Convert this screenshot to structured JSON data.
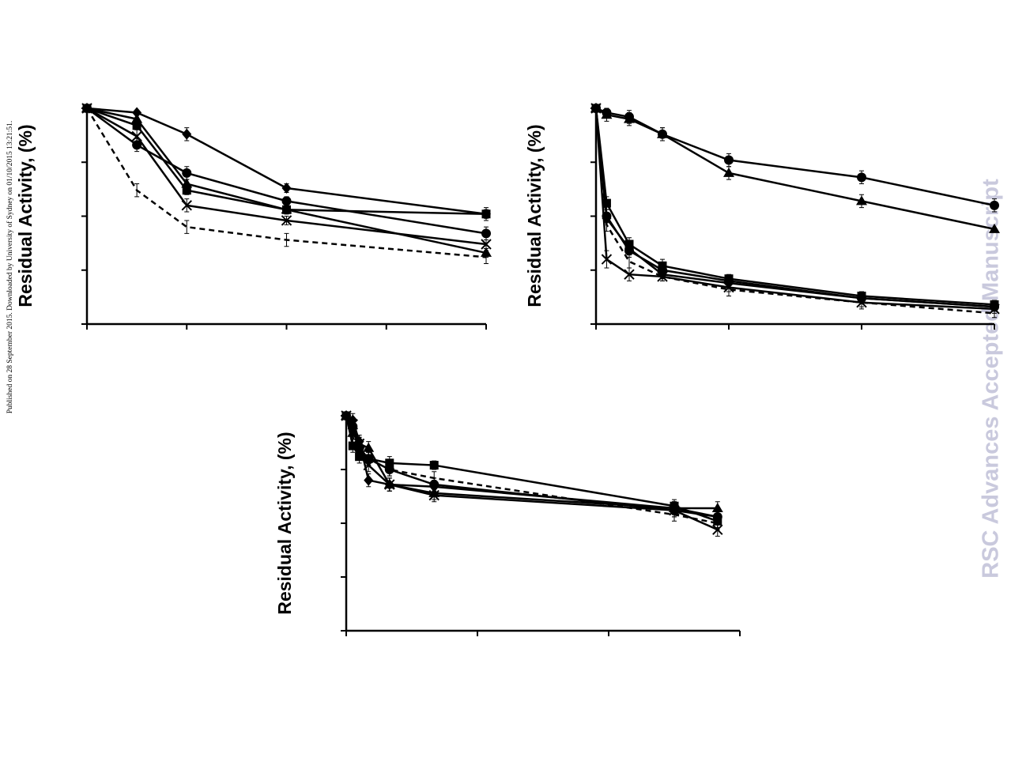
{
  "sidebar_note": "Published on 28 September 2015. Downloaded by University of Sydney on 01/10/2015 13:21:51.",
  "watermark": "RSC Advances Accepted Manuscript",
  "chart_data": [
    {
      "type": "line",
      "ylabel": "Residual Activity, (%)",
      "xlim": [
        0,
        4
      ],
      "ylim": [
        0,
        100
      ],
      "series": [
        {
          "marker": "diamond",
          "dashed": false,
          "x": [
            0,
            0.5,
            1,
            2,
            4
          ],
          "y": [
            100,
            98,
            88,
            63,
            51
          ],
          "err": [
            0,
            0,
            3,
            2,
            2
          ]
        },
        {
          "marker": "circle",
          "dashed": false,
          "x": [
            0,
            0.5,
            1,
            2,
            4
          ],
          "y": [
            100,
            83,
            70,
            57,
            42
          ],
          "err": [
            0,
            3,
            3,
            2,
            3
          ]
        },
        {
          "marker": "triangle",
          "dashed": false,
          "x": [
            0,
            0.5,
            1,
            2,
            4
          ],
          "y": [
            100,
            95,
            65,
            53,
            33
          ],
          "err": [
            0,
            0,
            2,
            2,
            2
          ]
        },
        {
          "marker": "square",
          "dashed": false,
          "x": [
            0,
            0.5,
            1,
            2,
            4
          ],
          "y": [
            100,
            92,
            62,
            53,
            51
          ],
          "err": [
            0,
            0,
            2,
            2,
            3
          ]
        },
        {
          "marker": "cross",
          "dashed": false,
          "x": [
            0,
            0.5,
            1,
            2,
            4
          ],
          "y": [
            100,
            87,
            55,
            48,
            37
          ],
          "err": [
            0,
            3,
            3,
            2,
            2
          ]
        },
        {
          "marker": "none",
          "dashed": true,
          "x": [
            0,
            0.5,
            1,
            2,
            4
          ],
          "y": [
            100,
            62,
            45,
            39,
            31
          ],
          "err": [
            0,
            3,
            3,
            3,
            3
          ]
        }
      ]
    },
    {
      "type": "line",
      "ylabel": "Residual Activity, (%)",
      "xlim": [
        0,
        30
      ],
      "ylim": [
        0,
        100
      ],
      "series": [
        {
          "marker": "circle",
          "dashed": false,
          "x": [
            0,
            0.8,
            2.5,
            5,
            10,
            20,
            30
          ],
          "y": [
            100,
            98,
            96,
            88,
            76,
            68,
            55
          ],
          "err": [
            0,
            0,
            3,
            3,
            3,
            3,
            3
          ]
        },
        {
          "marker": "triangle",
          "dashed": false,
          "x": [
            0,
            0.8,
            2.5,
            5,
            10,
            20,
            30
          ],
          "y": [
            100,
            97,
            95,
            88,
            70,
            57,
            44
          ],
          "err": [
            0,
            3,
            3,
            3,
            3,
            3,
            0
          ]
        },
        {
          "marker": "square",
          "dashed": false,
          "x": [
            0,
            0.8,
            2.5,
            5,
            10,
            20,
            30
          ],
          "y": [
            100,
            56,
            37,
            27,
            21,
            13,
            9
          ],
          "err": [
            0,
            3,
            3,
            3,
            2,
            2,
            2
          ]
        },
        {
          "marker": "circle",
          "dashed": false,
          "x": [
            0,
            0.8,
            2.5,
            5,
            10,
            20,
            30
          ],
          "y": [
            100,
            50,
            34,
            25,
            20,
            12,
            8
          ],
          "err": [
            0,
            3,
            3,
            2,
            2,
            2,
            2
          ]
        },
        {
          "marker": "diamond",
          "dashed": false,
          "x": [
            0,
            0.8,
            2.5,
            5,
            10,
            20,
            30
          ],
          "y": [
            100,
            49,
            35,
            23,
            19,
            12,
            8
          ],
          "err": [
            0,
            0,
            2,
            2,
            2,
            2,
            2
          ]
        },
        {
          "marker": "cross",
          "dashed": false,
          "x": [
            0,
            0.8,
            2.5,
            5,
            10,
            20,
            30
          ],
          "y": [
            100,
            30,
            23,
            22,
            17,
            10,
            7
          ],
          "err": [
            0,
            4,
            3,
            2,
            2,
            2,
            2
          ]
        },
        {
          "marker": "none",
          "dashed": true,
          "x": [
            0,
            0.8,
            2.5,
            5,
            10,
            20,
            30
          ],
          "y": [
            100,
            46,
            29,
            22,
            16,
            10,
            5
          ],
          "err": [
            0,
            3,
            3,
            2,
            3,
            3,
            2
          ]
        }
      ]
    },
    {
      "type": "line",
      "ylabel": "Residual Activity, (%)",
      "xlim": [
        0,
        3
      ],
      "ylim": [
        0,
        100
      ],
      "series": [
        {
          "marker": "square",
          "dashed": false,
          "x": [
            0,
            0.05,
            0.1,
            0.17,
            0.33,
            0.67,
            2.5,
            2.83
          ],
          "y": [
            100,
            86,
            81,
            80,
            78,
            77,
            58,
            51
          ],
          "err": [
            0,
            3,
            3,
            3,
            3,
            2,
            3,
            3
          ]
        },
        {
          "marker": "triangle",
          "dashed": false,
          "x": [
            0,
            0.05,
            0.1,
            0.17,
            0.33,
            0.67,
            2.5,
            2.83
          ],
          "y": [
            100,
            92,
            87,
            85,
            68,
            64,
            57,
            57
          ],
          "err": [
            0,
            3,
            3,
            3,
            3,
            3,
            3,
            3
          ]
        },
        {
          "marker": "circle",
          "dashed": false,
          "x": [
            0,
            0.05,
            0.1,
            0.17,
            0.33,
            0.67,
            2.5,
            2.83
          ],
          "y": [
            100,
            95,
            85,
            80,
            75,
            68,
            56,
            53
          ],
          "err": [
            0,
            3,
            3,
            3,
            3,
            3,
            3,
            3
          ]
        },
        {
          "marker": "diamond",
          "dashed": false,
          "x": [
            0,
            0.05,
            0.1,
            0.17,
            0.33,
            0.67,
            2.5,
            2.83
          ],
          "y": [
            100,
            98,
            88,
            70,
            68,
            67,
            57,
            53
          ],
          "err": [
            0,
            3,
            3,
            3,
            3,
            3,
            3,
            3
          ]
        },
        {
          "marker": "cross",
          "dashed": false,
          "x": [
            0,
            0.05,
            0.1,
            0.17,
            0.33,
            0.67,
            2.5,
            2.83
          ],
          "y": [
            100,
            96,
            87,
            77,
            68,
            63,
            56,
            47
          ],
          "err": [
            0,
            3,
            3,
            3,
            3,
            3,
            3,
            3
          ]
        },
        {
          "marker": "none",
          "dashed": true,
          "x": [
            0,
            0.05,
            0.1,
            0.17,
            0.33,
            0.67,
            2.5,
            2.83
          ],
          "y": [
            100,
            90,
            85,
            80,
            75,
            71,
            54,
            50
          ],
          "err": [
            0,
            3,
            3,
            3,
            3,
            3,
            3,
            3
          ]
        }
      ]
    }
  ]
}
